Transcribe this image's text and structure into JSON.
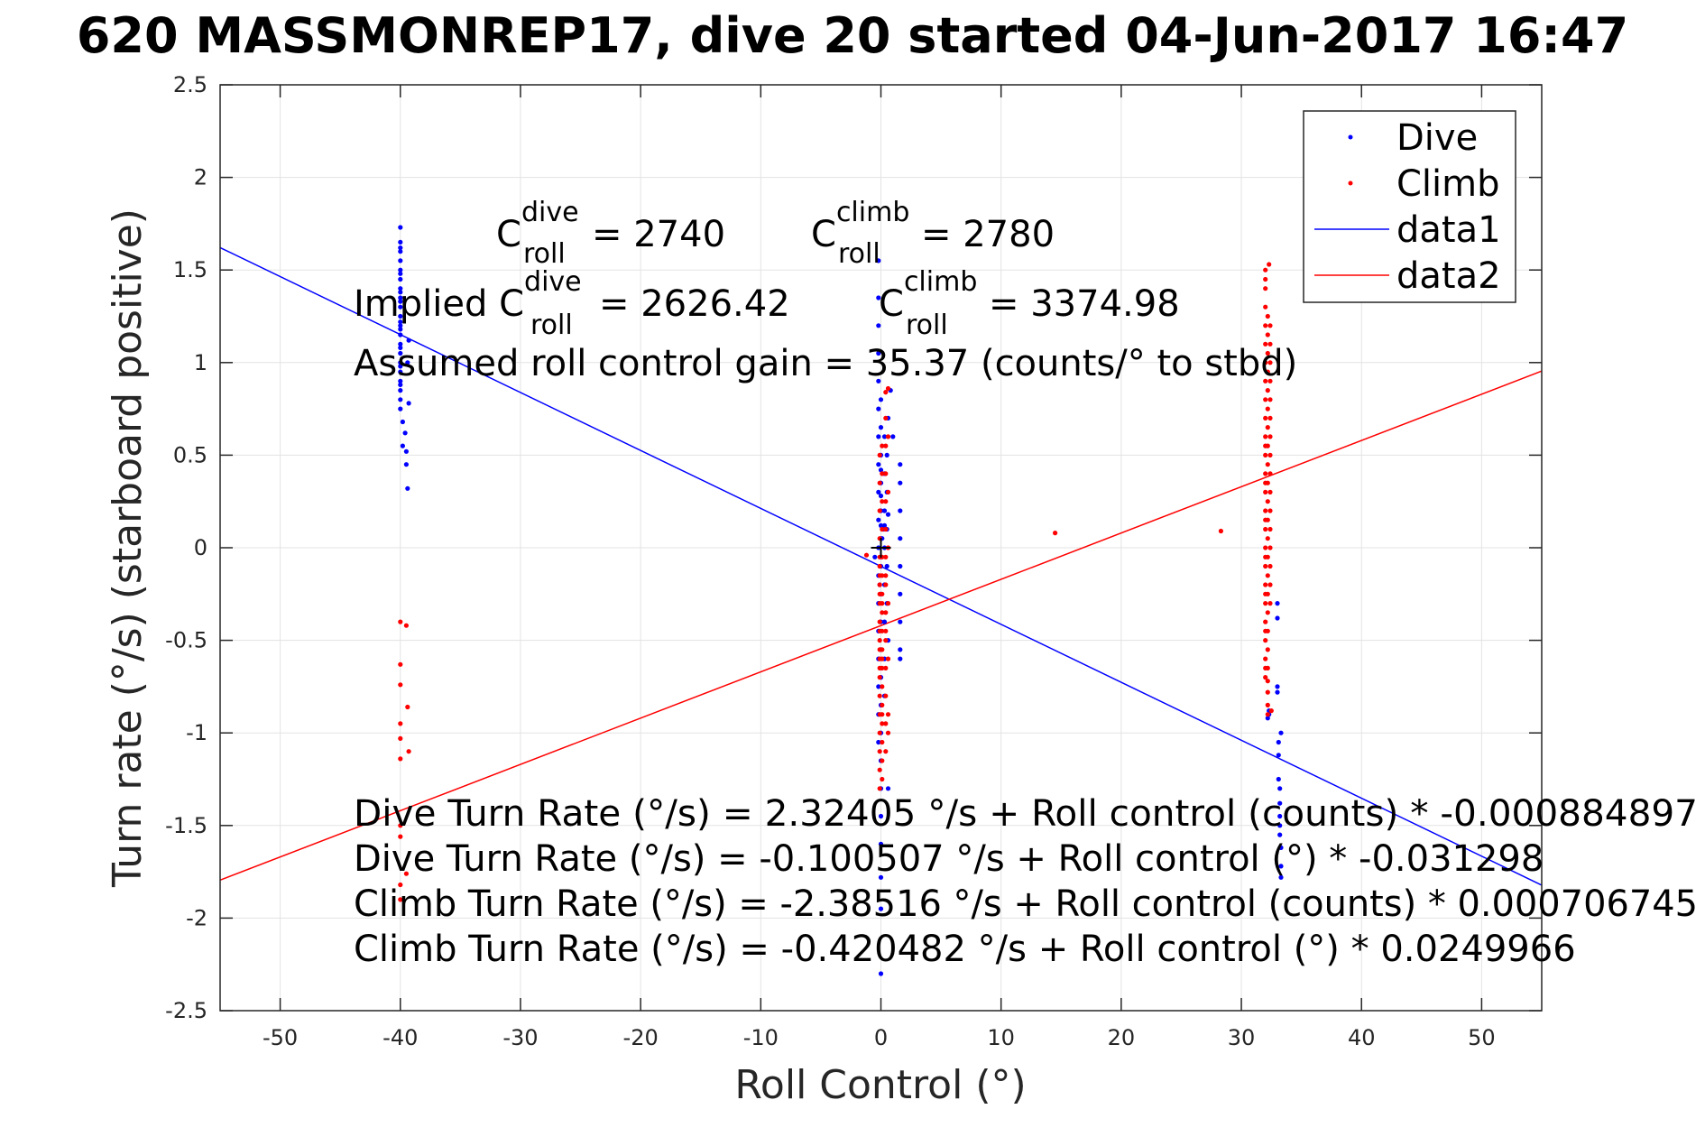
{
  "chart_data": {
    "type": "scatter",
    "title": "620 MASSMONREP17, dive 20 started 04-Jun-2017 16:47",
    "xlabel": "Roll Control (°)",
    "ylabel": "Turn rate (°/s) (starboard positive)",
    "xlim": [
      -55,
      55
    ],
    "ylim": [
      -2.5,
      2.5
    ],
    "xticks": [
      -50,
      -40,
      -30,
      -20,
      -10,
      0,
      10,
      20,
      30,
      40,
      50
    ],
    "yticks": [
      -2.5,
      -2,
      -1.5,
      -1,
      -0.5,
      0,
      0.5,
      1,
      1.5,
      2,
      2.5
    ],
    "xtick_labels": [
      "-50",
      "-40",
      "-30",
      "-20",
      "-10",
      "0",
      "10",
      "20",
      "30",
      "40",
      "50"
    ],
    "ytick_labels": [
      "-2.5",
      "-2",
      "-1.5",
      "-1",
      "-0.5",
      "0",
      "0.5",
      "1",
      "1.5",
      "2",
      "2.5"
    ],
    "grid": true,
    "legend_placement": "top-right",
    "series": [
      {
        "name": "Dive",
        "kind": "points",
        "color": "#0000ff",
        "x": [
          -40,
          -40,
          -40,
          -40,
          -40,
          -40,
          -40,
          -40,
          -40,
          -40,
          -40,
          -40,
          -40,
          -40,
          -40,
          -40,
          -40,
          -40,
          -40,
          -40,
          -40,
          -40,
          -40,
          -40,
          -40,
          -40,
          -40,
          -40,
          -40,
          -39.8,
          -39.8,
          -39.6,
          -39.5,
          -39.5,
          -39.4,
          -39.4,
          -39.3,
          -39.3,
          -0.2,
          -0.2,
          -0.2,
          -0.2,
          -0.2,
          -0.2,
          -0.2,
          -0.2,
          -0.2,
          -0.2,
          -0.2,
          -0.2,
          -0.2,
          -0.2,
          -0.2,
          -0.2,
          -0.2,
          -0.2,
          0,
          0,
          0,
          0,
          0,
          0,
          0,
          0,
          0,
          0,
          0,
          0,
          0,
          0,
          0,
          0,
          0,
          0,
          0,
          0,
          0,
          0,
          0,
          0,
          0.3,
          0.3,
          0.3,
          0.3,
          0.3,
          0.3,
          0.3,
          0.3,
          0.5,
          0.5,
          0.5,
          0.5,
          0.5,
          0.6,
          0.6,
          0.6,
          1.6,
          1.6,
          1.6,
          1.6,
          1.6,
          1.6,
          1.6,
          1.6,
          1.6,
          32.2,
          32.3,
          32.3,
          33,
          33,
          33,
          33,
          33.1,
          33.1,
          33.1,
          33.2,
          33.2,
          33.2,
          33.2,
          33.2,
          33.3,
          33.3,
          33.3,
          33.3,
          -0.5,
          0.1,
          0.2,
          0.6,
          0.3,
          1.0,
          0.8,
          -0.1
        ],
        "y": [
          1.73,
          1.65,
          1.6,
          1.55,
          1.5,
          1.45,
          1.4,
          1.35,
          1.3,
          1.25,
          1.2,
          1.15,
          1.1,
          1.05,
          1.0,
          0.95,
          0.9,
          0.85,
          0.8,
          0.75,
          1.62,
          1.48,
          1.33,
          1.22,
          1.08,
          0.98,
          0.88,
          1.38,
          1.18,
          0.68,
          0.55,
          0.62,
          0.45,
          0.52,
          0.32,
          1.0,
          1.12,
          0.78,
          1.55,
          1.35,
          1.2,
          1.05,
          0.9,
          0.75,
          0.6,
          0.45,
          0.3,
          0.15,
          0.0,
          -0.15,
          -0.3,
          -0.45,
          -0.6,
          -0.75,
          -0.9,
          -1.05,
          0.8,
          0.65,
          0.5,
          0.35,
          0.2,
          0.05,
          -0.1,
          -0.25,
          -0.4,
          -0.55,
          -0.7,
          -0.85,
          -1.0,
          -1.15,
          -1.3,
          -1.45,
          -1.6,
          -1.78,
          -1.95,
          -2.3,
          0.42,
          0.28,
          0.12,
          -0.05,
          0.6,
          0.4,
          0.2,
          0.0,
          -0.2,
          -0.4,
          -0.6,
          -0.8,
          0.5,
          0.3,
          0.1,
          -0.1,
          -0.3,
          0.7,
          -0.5,
          -1.3,
          0.45,
          0.35,
          0.2,
          0.05,
          -0.1,
          -0.25,
          -0.4,
          -0.55,
          -0.6,
          -0.92,
          -0.9,
          -0.88,
          -0.3,
          -0.38,
          -0.75,
          -0.78,
          -1.05,
          -1.12,
          -1.25,
          -1.3,
          -1.38,
          -1.45,
          -1.5,
          -1.55,
          -1.62,
          -1.72,
          -1.78,
          -1.0,
          -0.05,
          0.05,
          0.1,
          0.18,
          0.12,
          0.6,
          0.85,
          -0.2
        ]
      },
      {
        "name": "Climb",
        "kind": "points",
        "color": "#ff0000",
        "x": [
          -40,
          -40,
          -40,
          -40,
          -40,
          -40,
          -40,
          -40,
          -40,
          -40,
          -39.5,
          -39.4,
          -39.5,
          -39.3,
          -0.1,
          -0.1,
          -0.1,
          -0.1,
          -0.1,
          -0.1,
          -0.1,
          -0.1,
          -0.1,
          -0.1,
          -0.1,
          -0.1,
          -0.1,
          -0.1,
          -0.1,
          -0.1,
          -0.1,
          -0.1,
          -0.1,
          -0.1,
          -0.1,
          -0.1,
          -0.1,
          0.1,
          0.1,
          0.1,
          0.1,
          0.1,
          0.1,
          0.1,
          0.1,
          0.1,
          0.1,
          0.1,
          0.1,
          0.1,
          0.1,
          0.1,
          0.1,
          0.1,
          0.1,
          0.1,
          0.1,
          0.4,
          0.4,
          0.4,
          0.4,
          0.4,
          0.4,
          0.4,
          0.4,
          0.4,
          0.4,
          0.4,
          0.4,
          0.4,
          0.4,
          0.4,
          0.4,
          0.6,
          0.6,
          0.6,
          0.6,
          0.6,
          0.6,
          0.6,
          0.6,
          -1.2,
          14.5,
          28.3,
          32,
          32,
          32,
          32,
          32,
          32,
          32,
          32,
          32,
          32,
          32,
          32,
          32,
          32,
          32,
          32,
          32,
          32,
          32,
          32,
          32,
          32,
          32,
          32,
          32,
          32,
          32,
          32,
          32,
          32,
          32,
          32.2,
          32.2,
          32.2,
          32.2,
          32.2,
          32.2,
          32.2,
          32.2,
          32.2,
          32.2,
          32.2,
          32.2,
          32.2,
          32.2,
          32.2,
          32.2,
          32.2,
          32.2,
          32.2,
          32.2,
          32.2,
          32.2,
          32.2,
          32.2,
          32.4,
          32.4,
          32.4,
          32.4,
          32.4,
          32.4,
          32.4,
          32.4,
          32.4,
          32.4,
          32.4,
          32.4,
          32.4,
          32.4,
          32.4,
          32.4,
          32.3,
          32.5
        ],
        "y": [
          -0.4,
          -0.63,
          -0.74,
          -0.95,
          -1.03,
          -1.14,
          -1.5,
          -1.56,
          -1.82,
          -1.9,
          -0.42,
          -0.86,
          -1.76,
          -1.1,
          0.5,
          0.35,
          0.2,
          0.05,
          -0.1,
          -0.2,
          -0.3,
          -0.4,
          -0.5,
          -0.6,
          -0.7,
          -0.8,
          -0.9,
          -1.0,
          -1.1,
          -1.2,
          -1.3,
          -0.05,
          -0.15,
          -0.25,
          -0.45,
          -0.55,
          -0.65,
          0.55,
          0.4,
          0.25,
          0.1,
          -0.05,
          -0.15,
          -0.25,
          -0.35,
          -0.45,
          -0.55,
          -0.65,
          -0.75,
          -0.85,
          -0.95,
          -1.05,
          -1.15,
          -1.25,
          -0.3,
          -0.6,
          -0.9,
          0.84,
          0.7,
          0.55,
          0.4,
          0.25,
          0.1,
          -0.05,
          -0.2,
          -0.35,
          -0.5,
          -0.65,
          -0.8,
          -0.95,
          -1.1,
          -0.15,
          -0.45,
          0.86,
          0.6,
          0.3,
          0.0,
          -0.3,
          -0.6,
          -0.9,
          -1.0,
          -0.04,
          0.08,
          0.09,
          1.5,
          1.4,
          1.3,
          1.2,
          1.1,
          1.0,
          0.9,
          0.8,
          0.7,
          0.6,
          0.5,
          0.4,
          0.3,
          0.2,
          0.1,
          0.0,
          -0.1,
          -0.2,
          -0.3,
          -0.4,
          -0.5,
          -0.6,
          -0.7,
          0.55,
          0.35,
          0.15,
          -0.05,
          -0.25,
          -0.45,
          -0.65,
          1.45,
          1.25,
          1.15,
          1.05,
          0.95,
          0.85,
          0.75,
          0.65,
          0.55,
          0.45,
          0.35,
          0.25,
          0.15,
          0.05,
          -0.05,
          -0.15,
          -0.25,
          -0.35,
          -0.45,
          -0.55,
          -0.65,
          -0.72,
          -0.78,
          -0.85,
          -0.9,
          1.2,
          1.1,
          1.0,
          0.9,
          0.8,
          0.7,
          0.6,
          0.5,
          0.4,
          0.3,
          0.2,
          0.1,
          0.0,
          -0.1,
          -0.2,
          -0.3,
          1.53,
          -0.88
        ]
      },
      {
        "name": "data1",
        "kind": "line",
        "color": "#0000ff",
        "x": [
          -55,
          55
        ],
        "y": [
          1.621,
          -1.822
        ]
      },
      {
        "name": "data2",
        "kind": "line",
        "color": "#ff0000",
        "x": [
          -55,
          55
        ],
        "y": [
          -1.795,
          0.954
        ]
      }
    ],
    "annotations": [
      {
        "pre": "C",
        "sup": "dive",
        "sub": "roll",
        "post": " = 2740"
      },
      {
        "pre": "C",
        "sup": "climb",
        "sub": "roll",
        "post": " = 2780"
      },
      {
        "pre": "Implied C",
        "sup": "dive",
        "sub": "roll",
        "post": " = 2626.42"
      },
      {
        "pre": "C",
        "sup": "climb",
        "sub": "roll",
        "post": " = 3374.98"
      },
      {
        "text": "Assumed roll control gain = 35.37 (counts/° to stbd)"
      },
      {
        "text": "Dive Turn Rate (°/s) = 2.32405 °/s + Roll control (counts) * -0.000884897"
      },
      {
        "text": "Dive Turn Rate (°/s) = -0.100507 °/s + Roll control (°) * -0.031298"
      },
      {
        "text": "Climb Turn Rate (°/s) = -2.38516 °/s + Roll control (counts) * 0.000706745"
      },
      {
        "text": "Climb Turn Rate (°/s) = -0.420482 °/s + Roll control (°) * 0.0249966"
      }
    ],
    "center_marker": {
      "x": 0,
      "y": 0
    }
  }
}
